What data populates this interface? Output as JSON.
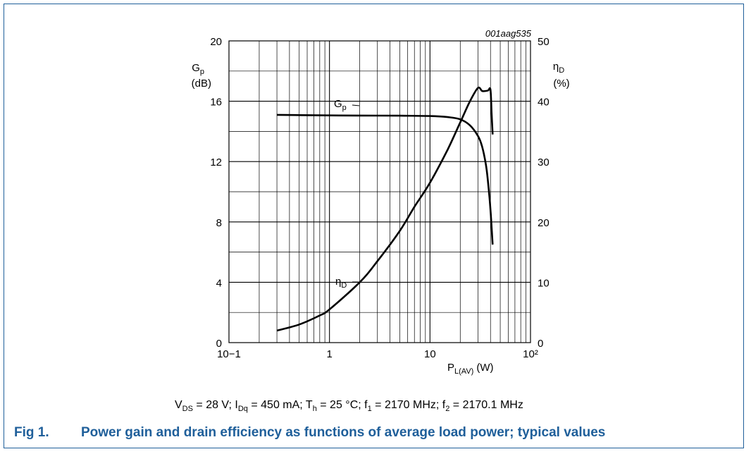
{
  "figure_id": "001aag535",
  "chart_data": {
    "type": "line",
    "x_scale": "log",
    "xlim": [
      0.1,
      100
    ],
    "x_ticks": [
      "10−1",
      "1",
      "10",
      "10²"
    ],
    "xlabel": {
      "main": "P",
      "sub": "L(AV)",
      "unit": "(W)"
    },
    "left_axis": {
      "label_main": "G",
      "label_sub": "p",
      "unit": "(dB)",
      "ylim": [
        0,
        20
      ],
      "ticks": [
        "0",
        "4",
        "8",
        "12",
        "16",
        "20"
      ]
    },
    "right_axis": {
      "label_main": "η",
      "label_sub": "D",
      "unit": "(%)",
      "ylim": [
        0,
        50
      ],
      "ticks": [
        "0",
        "10",
        "20",
        "30",
        "40",
        "50"
      ]
    },
    "grid": true,
    "series": [
      {
        "name": "G",
        "name_sub": "p",
        "axis": "left",
        "color": "#000000",
        "x": [
          0.3,
          0.5,
          1,
          2,
          5,
          10,
          15,
          20,
          25,
          30,
          33,
          36,
          38,
          40,
          42
        ],
        "y": [
          15.1,
          15.08,
          15.06,
          15.05,
          15.04,
          15.02,
          14.95,
          14.8,
          14.4,
          13.7,
          13.0,
          11.8,
          10.5,
          8.8,
          6.5
        ]
      },
      {
        "name": "η",
        "name_sub": "D",
        "axis": "right",
        "color": "#000000",
        "x": [
          0.3,
          0.5,
          0.8,
          1,
          2,
          3,
          5,
          7,
          10,
          15,
          20,
          25,
          30,
          33,
          36,
          38,
          40,
          41,
          42
        ],
        "y": [
          2,
          3,
          4.5,
          5.5,
          10,
          13.5,
          18.5,
          22.5,
          26.5,
          32,
          36.5,
          40,
          42.2,
          41.7,
          41.7,
          41.8,
          41.9,
          38,
          34.5
        ]
      }
    ]
  },
  "conditions": {
    "vds": "V",
    "vds_sub": "DS",
    "vds_val": " = 28 V; ",
    "idq": "I",
    "idq_sub": "Dq",
    "idq_val": " = 450 mA; ",
    "th": "T",
    "th_sub": "h",
    "th_val": " = 25 °C; ",
    "f1": "f",
    "f1_sub": "1",
    "f1_val": " = 2170 MHz; ",
    "f2": "f",
    "f2_sub": "2",
    "f2_val": " = 2170.1 MHz"
  },
  "caption": {
    "number": "Fig 1.",
    "text": "Power gain and drain efficiency as functions of average load power; typical values"
  }
}
